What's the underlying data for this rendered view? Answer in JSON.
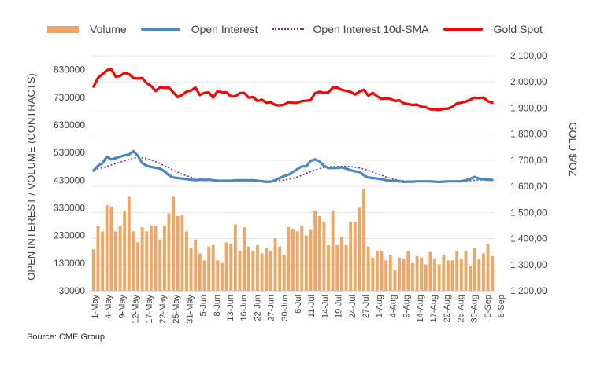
{
  "legend": {
    "volume": "Volume",
    "open_interest": "Open Interest",
    "sma": "Open Interest 10d-SMA",
    "gold": "Gold Spot"
  },
  "source": "Source: CME Group",
  "colors": {
    "volume": "#f4a460",
    "open_interest": "#4a86c5",
    "sma": "#7030a0",
    "gold": "#ff0000",
    "grid": "#e6e6e6"
  },
  "chart_data": {
    "type": "bar+line",
    "ylabel_left": "OPEN INTEREST / VOLUME (CONTRACTS)",
    "ylabel_right": "GOLD $/OZ",
    "ylim_left": [
      30000,
      880000
    ],
    "ylim_right": [
      1200,
      2100
    ],
    "yticks_left": [
      "30000",
      "130000",
      "230000",
      "330000",
      "430000",
      "530000",
      "630000",
      "730000",
      "830000"
    ],
    "yticks_right": [
      "1.200,00",
      "1.300,00",
      "1.400,00",
      "1.500,00",
      "1.600,00",
      "1.700,00",
      "1.800,00",
      "1.900,00",
      "2.000,00",
      "2.100,00"
    ],
    "xtick_labels": [
      "1-May",
      "4-May",
      "9-May",
      "12-May",
      "17-May",
      "22-May",
      "25-May",
      "31-May",
      "5-Jun",
      "8-Jun",
      "13-Jun",
      "16-Jun",
      "22-Jun",
      "27-Jun",
      "30-Jun",
      "6-Jul",
      "11-Jul",
      "14-Jul",
      "19-Jul",
      "24-Jul",
      "27-Jul",
      "1-Aug",
      "4-Aug",
      "9-Aug",
      "14-Aug",
      "17-Aug",
      "22-Aug",
      "25-Aug",
      "30-Aug",
      "5-Sep",
      "8-Sep"
    ],
    "grid": true,
    "legend_position": "top",
    "series": [
      {
        "name": "Volume",
        "kind": "bar",
        "axis": "left",
        "values": [
          180000,
          265000,
          245000,
          340000,
          335000,
          245000,
          265000,
          320000,
          370000,
          245000,
          205000,
          260000,
          245000,
          265000,
          265000,
          215000,
          265000,
          310000,
          370000,
          300000,
          305000,
          245000,
          185000,
          215000,
          165000,
          140000,
          190000,
          195000,
          140000,
          130000,
          205000,
          200000,
          270000,
          175000,
          260000,
          190000,
          175000,
          195000,
          165000,
          185000,
          175000,
          220000,
          190000,
          160000,
          260000,
          255000,
          245000,
          265000,
          230000,
          250000,
          320000,
          300000,
          280000,
          195000,
          320000,
          195000,
          225000,
          195000,
          280000,
          280000,
          330000,
          400000,
          190000,
          150000,
          175000,
          175000,
          140000,
          160000,
          105000,
          150000,
          145000,
          175000,
          130000,
          155000,
          150000,
          125000,
          170000,
          145000,
          125000,
          160000,
          140000,
          140000,
          175000,
          145000,
          175000,
          120000,
          185000,
          145000,
          165000,
          200000,
          155000
        ]
      },
      {
        "name": "Open Interest",
        "kind": "line",
        "axis": "left",
        "values": [
          465000,
          482000,
          492000,
          515000,
          505000,
          510000,
          515000,
          520000,
          522000,
          535000,
          518000,
          492000,
          482000,
          478000,
          475000,
          472000,
          462000,
          448000,
          440000,
          438000,
          436000,
          434000,
          432000,
          430000,
          432000,
          431000,
          432000,
          430000,
          428000,
          428000,
          428000,
          428000,
          430000,
          430000,
          430000,
          430000,
          430000,
          428000,
          426000,
          424000,
          425000,
          430000,
          438000,
          445000,
          450000,
          460000,
          470000,
          480000,
          480000,
          500000,
          505000,
          498000,
          482000,
          474000,
          474000,
          475000,
          476000,
          472000,
          466000,
          462000,
          460000,
          448000,
          440000,
          438000,
          436000,
          434000,
          430000,
          428000,
          428000,
          426000,
          424000,
          425000,
          425000,
          426000,
          426000,
          426000,
          426000,
          425000,
          424000,
          425000,
          426000,
          426000,
          426000,
          426000,
          430000,
          435000,
          442000,
          436000,
          433000,
          432000,
          431000
        ]
      },
      {
        "name": "Open Interest 10d-SMA",
        "kind": "dotted-line",
        "axis": "left",
        "values": [
          468000,
          471000,
          475000,
          480000,
          485000,
          490000,
          495000,
          500000,
          505000,
          510000,
          512000,
          511000,
          508000,
          503000,
          497000,
          490000,
          482000,
          474000,
          466000,
          459000,
          452000,
          446000,
          441000,
          437000,
          434000,
          432000,
          430000,
          429000,
          428000,
          428000,
          428000,
          428000,
          428000,
          428000,
          429000,
          429000,
          429000,
          429000,
          428000,
          428000,
          428000,
          428000,
          429000,
          431000,
          434000,
          437000,
          442000,
          448000,
          455000,
          461000,
          467000,
          472000,
          476000,
          478000,
          479000,
          480000,
          480000,
          480000,
          479000,
          477000,
          474000,
          470000,
          465000,
          460000,
          454000,
          448000,
          442000,
          437000,
          433000,
          430000,
          428000,
          426000,
          425000,
          425000,
          425000,
          425000,
          425000,
          425000,
          425000,
          425000,
          425000,
          425000,
          425000,
          426000,
          427000,
          428000,
          430000,
          431000,
          431000,
          431000,
          430000
        ]
      },
      {
        "name": "Gold Spot",
        "kind": "line",
        "axis": "right",
        "values": [
          1982,
          2015,
          2030,
          2045,
          2050,
          2020,
          2023,
          2035,
          2030,
          2015,
          2013,
          2015,
          1995,
          1985,
          1965,
          1980,
          1977,
          1978,
          1960,
          1942,
          1950,
          1963,
          1967,
          1978,
          1950,
          1958,
          1960,
          1940,
          1965,
          1960,
          1960,
          1945,
          1945,
          1957,
          1958,
          1940,
          1942,
          1927,
          1932,
          1920,
          1922,
          1912,
          1910,
          1913,
          1922,
          1920,
          1920,
          1927,
          1928,
          1930,
          1957,
          1962,
          1958,
          1960,
          1978,
          1978,
          1970,
          1966,
          1962,
          1952,
          1963,
          1970,
          1948,
          1958,
          1945,
          1935,
          1937,
          1935,
          1927,
          1930,
          1918,
          1915,
          1912,
          1913,
          1905,
          1903,
          1895,
          1895,
          1893,
          1897,
          1898,
          1905,
          1918,
          1920,
          1925,
          1932,
          1940,
          1938,
          1940,
          1926,
          1920
        ]
      }
    ]
  }
}
